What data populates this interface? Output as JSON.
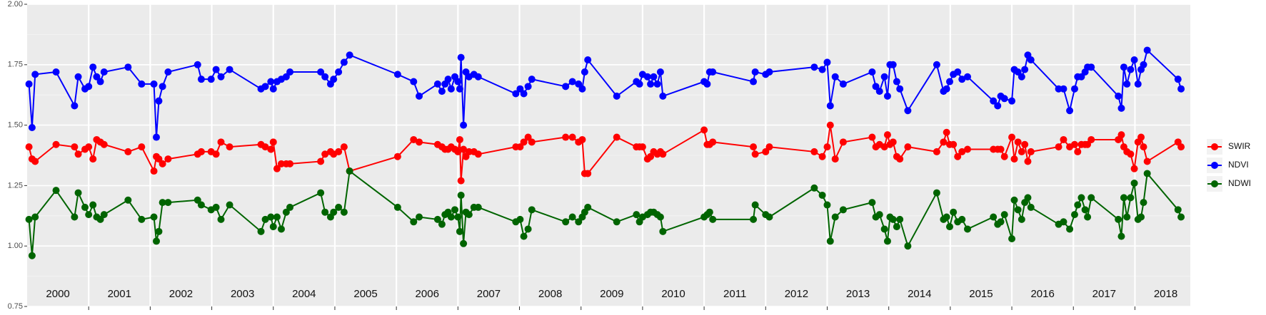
{
  "chart_data": {
    "type": "line",
    "x": [
      2000.03,
      2000.08,
      2000.13,
      2000.47,
      2000.77,
      2000.83,
      2000.94,
      2001.0,
      2001.07,
      2001.13,
      2001.19,
      2001.25,
      2001.64,
      2001.86,
      2002.06,
      2002.1,
      2002.14,
      2002.2,
      2002.29,
      2002.77,
      2002.83,
      2002.99,
      2003.07,
      2003.15,
      2003.29,
      2003.8,
      2003.87,
      2003.96,
      2004.0,
      2004.06,
      2004.13,
      2004.21,
      2004.27,
      2004.77,
      2004.84,
      2004.93,
      2004.98,
      2005.06,
      2005.15,
      2005.24,
      2006.02,
      2006.28,
      2006.37,
      2006.67,
      2006.74,
      2006.79,
      2006.84,
      2006.89,
      2006.95,
      2007.0,
      2007.03,
      2007.05,
      2007.09,
      2007.13,
      2007.18,
      2007.26,
      2007.33,
      2007.94,
      2008.01,
      2008.07,
      2008.14,
      2008.2,
      2008.75,
      2008.86,
      2008.96,
      2009.02,
      2009.06,
      2009.11,
      2009.58,
      2009.9,
      2009.95,
      2010.0,
      2010.08,
      2010.13,
      2010.18,
      2010.24,
      2010.29,
      2010.33,
      2011.0,
      2011.05,
      2011.09,
      2011.14,
      2011.8,
      2011.83,
      2012.0,
      2012.06,
      2012.79,
      2012.92,
      2013.0,
      2013.05,
      2013.13,
      2013.26,
      2013.73,
      2013.79,
      2013.85,
      2013.93,
      2013.98,
      2014.02,
      2014.07,
      2014.13,
      2014.18,
      2014.31,
      2014.78,
      2014.89,
      2014.94,
      2014.99,
      2015.05,
      2015.12,
      2015.19,
      2015.28,
      2015.7,
      2015.77,
      2015.82,
      2015.88,
      2016.0,
      2016.04,
      2016.1,
      2016.16,
      2016.21,
      2016.26,
      2016.31,
      2016.76,
      2016.84,
      2016.94,
      2017.02,
      2017.07,
      2017.13,
      2017.19,
      2017.23,
      2017.29,
      2017.73,
      2017.78,
      2017.82,
      2017.87,
      2017.93,
      2017.99,
      2018.05,
      2018.1,
      2018.14,
      2018.2,
      2018.7,
      2018.75
    ],
    "series": [
      {
        "name": "SWIR",
        "color": "#ff0000",
        "values": [
          1.41,
          1.36,
          1.35,
          1.42,
          1.41,
          1.38,
          1.4,
          1.41,
          1.36,
          1.44,
          1.43,
          1.42,
          1.39,
          1.41,
          1.31,
          1.37,
          1.36,
          1.34,
          1.36,
          1.38,
          1.39,
          1.39,
          1.38,
          1.43,
          1.41,
          1.42,
          1.41,
          1.4,
          1.43,
          1.32,
          1.34,
          1.34,
          1.34,
          1.35,
          1.38,
          1.39,
          1.38,
          1.39,
          1.41,
          1.31,
          1.37,
          1.44,
          1.43,
          1.42,
          1.41,
          1.4,
          1.4,
          1.41,
          1.4,
          1.39,
          1.44,
          1.27,
          1.4,
          1.37,
          1.39,
          1.39,
          1.38,
          1.41,
          1.41,
          1.43,
          1.45,
          1.43,
          1.45,
          1.45,
          1.43,
          1.44,
          1.3,
          1.3,
          1.45,
          1.41,
          1.41,
          1.41,
          1.36,
          1.37,
          1.39,
          1.38,
          1.39,
          1.38,
          1.48,
          1.42,
          1.42,
          1.43,
          1.41,
          1.38,
          1.39,
          1.41,
          1.39,
          1.37,
          1.41,
          1.5,
          1.36,
          1.43,
          1.45,
          1.41,
          1.42,
          1.41,
          1.46,
          1.42,
          1.43,
          1.37,
          1.36,
          1.41,
          1.39,
          1.43,
          1.47,
          1.42,
          1.42,
          1.37,
          1.39,
          1.4,
          1.4,
          1.4,
          1.4,
          1.37,
          1.45,
          1.36,
          1.43,
          1.39,
          1.42,
          1.35,
          1.39,
          1.41,
          1.44,
          1.41,
          1.42,
          1.39,
          1.42,
          1.42,
          1.42,
          1.44,
          1.44,
          1.46,
          1.41,
          1.39,
          1.38,
          1.32,
          1.43,
          1.45,
          1.41,
          1.35,
          1.43,
          1.41
        ]
      },
      {
        "name": "NDVI",
        "color": "#0000ff",
        "values": [
          1.67,
          1.49,
          1.71,
          1.72,
          1.58,
          1.7,
          1.65,
          1.66,
          1.74,
          1.7,
          1.68,
          1.72,
          1.74,
          1.67,
          1.67,
          1.45,
          1.6,
          1.66,
          1.72,
          1.75,
          1.69,
          1.69,
          1.73,
          1.7,
          1.73,
          1.65,
          1.66,
          1.68,
          1.65,
          1.68,
          1.69,
          1.7,
          1.72,
          1.72,
          1.7,
          1.67,
          1.69,
          1.72,
          1.76,
          1.79,
          1.71,
          1.68,
          1.62,
          1.67,
          1.64,
          1.67,
          1.69,
          1.65,
          1.7,
          1.68,
          1.65,
          1.78,
          1.5,
          1.72,
          1.7,
          1.71,
          1.7,
          1.63,
          1.65,
          1.63,
          1.66,
          1.69,
          1.66,
          1.68,
          1.67,
          1.65,
          1.72,
          1.77,
          1.62,
          1.68,
          1.67,
          1.71,
          1.7,
          1.67,
          1.7,
          1.67,
          1.72,
          1.62,
          1.68,
          1.67,
          1.72,
          1.72,
          1.68,
          1.72,
          1.71,
          1.72,
          1.74,
          1.73,
          1.76,
          1.58,
          1.7,
          1.67,
          1.72,
          1.66,
          1.64,
          1.7,
          1.62,
          1.75,
          1.75,
          1.68,
          1.65,
          1.56,
          1.75,
          1.64,
          1.65,
          1.68,
          1.71,
          1.72,
          1.69,
          1.7,
          1.6,
          1.58,
          1.62,
          1.61,
          1.6,
          1.73,
          1.72,
          1.7,
          1.73,
          1.79,
          1.77,
          1.65,
          1.65,
          1.56,
          1.65,
          1.7,
          1.7,
          1.72,
          1.74,
          1.74,
          1.62,
          1.57,
          1.74,
          1.67,
          1.73,
          1.77,
          1.67,
          1.73,
          1.75,
          1.81,
          1.69,
          1.65
        ]
      },
      {
        "name": "NDWI",
        "color": "#006400",
        "values": [
          1.11,
          0.96,
          1.12,
          1.23,
          1.12,
          1.22,
          1.16,
          1.13,
          1.17,
          1.12,
          1.11,
          1.13,
          1.19,
          1.11,
          1.12,
          1.02,
          1.06,
          1.18,
          1.18,
          1.19,
          1.17,
          1.15,
          1.16,
          1.11,
          1.17,
          1.06,
          1.11,
          1.12,
          1.08,
          1.12,
          1.07,
          1.14,
          1.16,
          1.22,
          1.14,
          1.12,
          1.14,
          1.16,
          1.14,
          1.31,
          1.16,
          1.1,
          1.12,
          1.11,
          1.09,
          1.13,
          1.14,
          1.12,
          1.15,
          1.12,
          1.06,
          1.21,
          1.01,
          1.14,
          1.13,
          1.16,
          1.16,
          1.1,
          1.11,
          1.04,
          1.07,
          1.15,
          1.1,
          1.12,
          1.1,
          1.12,
          1.14,
          1.16,
          1.1,
          1.13,
          1.1,
          1.12,
          1.13,
          1.14,
          1.14,
          1.13,
          1.12,
          1.06,
          1.12,
          1.13,
          1.14,
          1.11,
          1.11,
          1.17,
          1.13,
          1.12,
          1.24,
          1.21,
          1.17,
          1.02,
          1.12,
          1.15,
          1.18,
          1.12,
          1.13,
          1.07,
          1.02,
          1.12,
          1.11,
          1.08,
          1.11,
          1.0,
          1.22,
          1.11,
          1.12,
          1.08,
          1.14,
          1.1,
          1.11,
          1.07,
          1.12,
          1.09,
          1.1,
          1.13,
          1.03,
          1.19,
          1.15,
          1.11,
          1.18,
          1.2,
          1.16,
          1.09,
          1.1,
          1.07,
          1.13,
          1.17,
          1.2,
          1.15,
          1.12,
          1.2,
          1.11,
          1.04,
          1.2,
          1.12,
          1.2,
          1.26,
          1.11,
          1.12,
          1.18,
          1.3,
          1.15,
          1.12
        ]
      }
    ],
    "xlim": [
      2000.0,
      2018.9
    ],
    "x_breaks": [
      2001,
      2002,
      2003,
      2004,
      2005,
      2006,
      2007,
      2008,
      2009,
      2010,
      2011,
      2012,
      2013,
      2014,
      2015,
      2016,
      2017,
      2018
    ],
    "xticks": [
      {
        "value": 2000.5,
        "label": "2000"
      },
      {
        "value": 2001.5,
        "label": "2001"
      },
      {
        "value": 2002.5,
        "label": "2002"
      },
      {
        "value": 2003.5,
        "label": "2003"
      },
      {
        "value": 2004.5,
        "label": "2004"
      },
      {
        "value": 2005.5,
        "label": "2005"
      },
      {
        "value": 2006.5,
        "label": "2006"
      },
      {
        "value": 2007.5,
        "label": "2007"
      },
      {
        "value": 2008.5,
        "label": "2008"
      },
      {
        "value": 2009.5,
        "label": "2009"
      },
      {
        "value": 2010.5,
        "label": "2010"
      },
      {
        "value": 2011.5,
        "label": "2011"
      },
      {
        "value": 2012.5,
        "label": "2012"
      },
      {
        "value": 2013.5,
        "label": "2013"
      },
      {
        "value": 2014.5,
        "label": "2014"
      },
      {
        "value": 2015.5,
        "label": "2015"
      },
      {
        "value": 2016.5,
        "label": "2016"
      },
      {
        "value": 2017.5,
        "label": "2017"
      },
      {
        "value": 2018.5,
        "label": "2018"
      }
    ],
    "ylim": [
      0.75,
      2.0
    ],
    "yticks": [
      {
        "value": 0.75,
        "label": "0.75"
      },
      {
        "value": 1.0,
        "label": "1.00"
      },
      {
        "value": 1.25,
        "label": "1.25"
      },
      {
        "value": 1.5,
        "label": "1.50"
      },
      {
        "value": 1.75,
        "label": "1.75"
      },
      {
        "value": 2.0,
        "label": "2.00"
      }
    ],
    "grid": true,
    "legend": "right"
  }
}
